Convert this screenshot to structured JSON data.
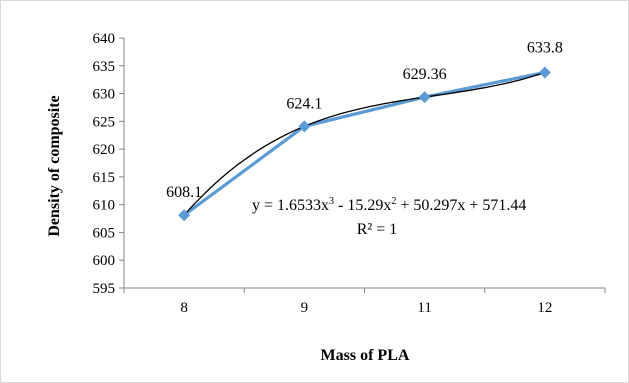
{
  "chart_data": {
    "type": "line",
    "categories": [
      "8",
      "9",
      "11",
      "12"
    ],
    "values": [
      608.1,
      624.1,
      629.36,
      633.8
    ],
    "data_labels": [
      "608.1",
      "624.1",
      "629.36",
      "633.8"
    ],
    "xlabel": "Mass of PLA",
    "ylabel": "Density of composite",
    "ylim": [
      595,
      640
    ],
    "yticks": [
      "595",
      "600",
      "605",
      "610",
      "615",
      "620",
      "625",
      "630",
      "635",
      "640"
    ],
    "grid": false,
    "legend": "none",
    "series_color": "#5b9bd5",
    "trendline": {
      "type": "polynomial",
      "order": 3,
      "coefficients": [
        1.6533,
        -15.29,
        50.297,
        571.44
      ],
      "equation_prefix": "y = 1.6533x",
      "equation_sup1": "3",
      "equation_mid1": " - 15.29x",
      "equation_sup2": "2",
      "equation_suffix": " + 50.297x + 571.44",
      "r_squared_label": "R² = 1",
      "color": "#000000"
    }
  }
}
